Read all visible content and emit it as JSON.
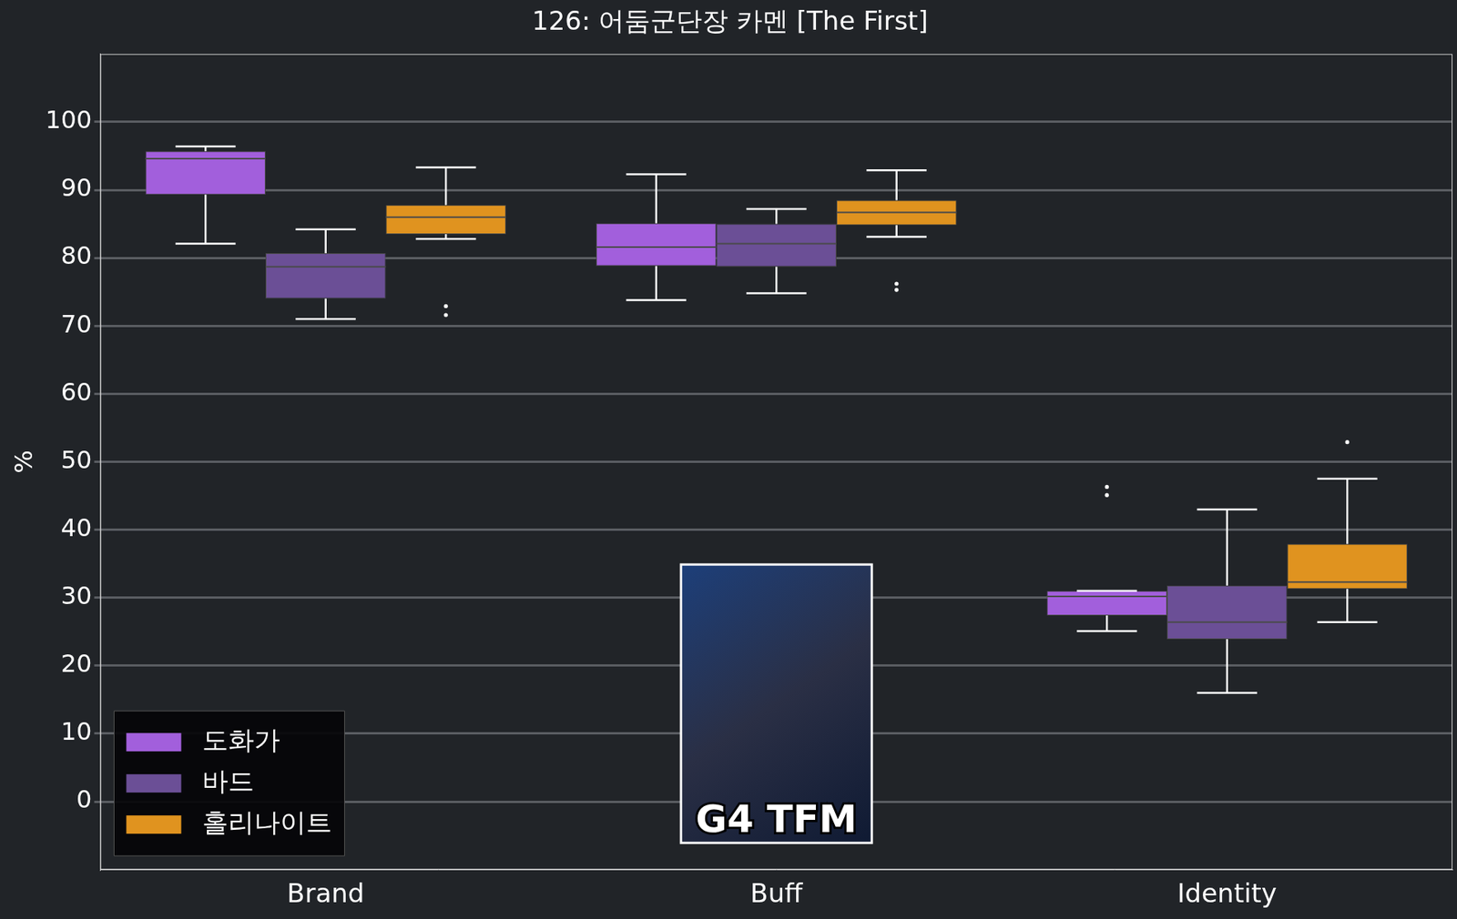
{
  "chart_data": {
    "type": "boxplot",
    "title": "126: 어둠군단장 카멘 [The First]",
    "y_label": "%",
    "annotation": "G4 TFM",
    "categories": [
      "Brand",
      "Buff",
      "Identity"
    ],
    "series": [
      {
        "name": "도화가",
        "color": "#a25fdc",
        "values": [
          {
            "low": 82.1,
            "q1": 89.3,
            "median": 94.6,
            "q3": 95.7,
            "high": 96.4,
            "outliers": []
          },
          {
            "low": 73.8,
            "q1": 78.8,
            "median": 81.6,
            "q3": 85.1,
            "high": 92.3,
            "outliers": []
          },
          {
            "low": 25.1,
            "q1": 27.4,
            "median": 30.2,
            "q3": 31.0,
            "high": 31.0,
            "outliers": [
              46.3,
              45.1
            ]
          }
        ]
      },
      {
        "name": "바드",
        "color": "#6b4f96",
        "values": [
          {
            "low": 71.0,
            "q1": 74.0,
            "median": 78.7,
            "q3": 80.7,
            "high": 84.2,
            "outliers": []
          },
          {
            "low": 74.8,
            "q1": 78.7,
            "median": 82.1,
            "q3": 85.0,
            "high": 87.2,
            "outliers": []
          },
          {
            "low": 16.0,
            "q1": 23.9,
            "median": 26.4,
            "q3": 31.8,
            "high": 43.0,
            "outliers": []
          }
        ]
      },
      {
        "name": "홀리나이트",
        "color": "#e0931f",
        "values": [
          {
            "low": 82.8,
            "q1": 83.5,
            "median": 86.0,
            "q3": 87.8,
            "high": 93.3,
            "outliers": [
              72.9,
              71.6
            ]
          },
          {
            "low": 83.1,
            "q1": 84.8,
            "median": 86.7,
            "q3": 88.5,
            "high": 92.9,
            "outliers": [
              76.2,
              75.3
            ]
          },
          {
            "low": 26.4,
            "q1": 31.3,
            "median": 32.3,
            "q3": 37.9,
            "high": 47.5,
            "outliers": [
              52.9
            ]
          }
        ]
      }
    ],
    "ylim": [
      -10,
      110
    ],
    "yticks": [
      0,
      10,
      20,
      30,
      40,
      50,
      60,
      70,
      80,
      90,
      100
    ],
    "grid": true,
    "legend": "lower left"
  }
}
